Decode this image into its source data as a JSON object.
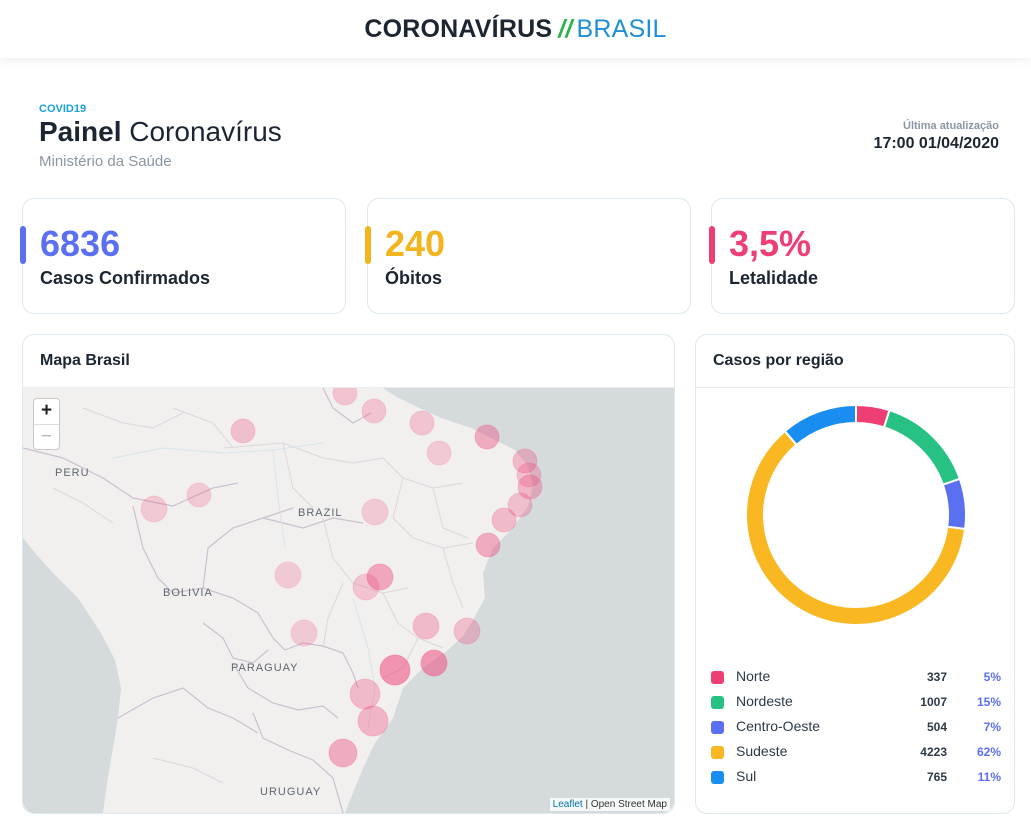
{
  "header": {
    "brand_left": "CORONAVÍRUS",
    "brand_sep": "//",
    "brand_right": "BRASIL"
  },
  "page": {
    "eyebrow": "COVID19",
    "title_bold": "Painel",
    "title_rest": "Coronavírus",
    "subtitle": "Ministério da Saúde",
    "update_label": "Última atualização",
    "update_value": "17:00 01/04/2020"
  },
  "stats": [
    {
      "value": "6836",
      "label": "Casos Confirmados",
      "color": "#5b70f0"
    },
    {
      "value": "240",
      "label": "Óbitos",
      "color": "#f2b51e"
    },
    {
      "value": "3,5%",
      "label": "Letalidade",
      "color": "#ee3f75"
    }
  ],
  "map": {
    "title": "Mapa Brasil",
    "zoom_in": "+",
    "zoom_out": "−",
    "labels": [
      "PERU",
      "BRAZIL",
      "BOLIVIA",
      "PARAGUAY",
      "URUGUAY"
    ],
    "attribution_link": "Leaflet",
    "attribution_text": "| Open Street Map",
    "marker_color": "#ee3f75"
  },
  "regions": {
    "title": "Casos por região",
    "items": [
      {
        "name": "Norte",
        "count": "337",
        "pct": "5%",
        "value": 337,
        "color": "#ee3f75"
      },
      {
        "name": "Nordeste",
        "count": "1007",
        "pct": "15%",
        "value": 1007,
        "color": "#27c283"
      },
      {
        "name": "Centro-Oeste",
        "count": "504",
        "pct": "7%",
        "value": 504,
        "color": "#5b70f0"
      },
      {
        "name": "Sudeste",
        "count": "4223",
        "pct": "62%",
        "value": 4223,
        "color": "#f9b722"
      },
      {
        "name": "Sul",
        "count": "765",
        "pct": "11%",
        "value": 765,
        "color": "#1a8df0"
      }
    ]
  },
  "chart_data": {
    "type": "pie",
    "title": "Casos por região",
    "categories": [
      "Norte",
      "Nordeste",
      "Centro-Oeste",
      "Sudeste",
      "Sul"
    ],
    "values": [
      337,
      1007,
      504,
      4223,
      765
    ],
    "colors": [
      "#ee3f75",
      "#27c283",
      "#5b70f0",
      "#f9b722",
      "#1a8df0"
    ]
  }
}
